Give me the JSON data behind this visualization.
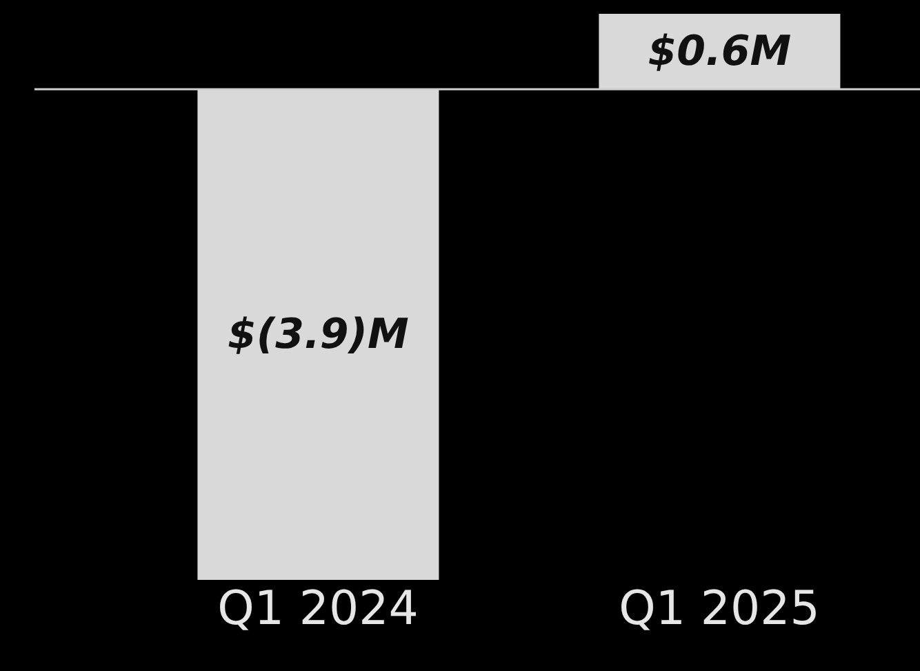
{
  "chart_data": {
    "type": "bar",
    "categories": [
      "Q1 2024",
      "Q1 2025"
    ],
    "values": [
      -3.9,
      0.6
    ],
    "value_labels": [
      "$(3.9)M",
      "$0.6M"
    ],
    "color": "#d9d9d9",
    "tick_labels": "x"
  }
}
